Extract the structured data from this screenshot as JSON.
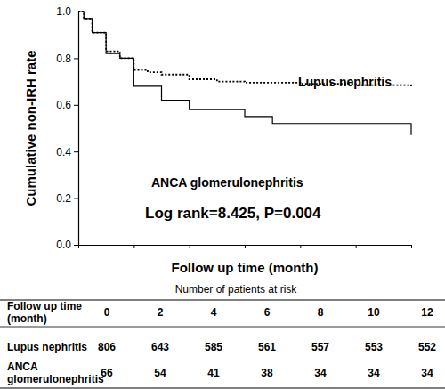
{
  "chart_data": {
    "type": "step",
    "annotation": "Log rank=8.425, P=0.004",
    "x_label": "Follow up time (month)",
    "y_label": "Cumulative non-IRH rate",
    "xlim": [
      0,
      12
    ],
    "xticks": [
      0,
      2,
      4,
      6,
      8,
      10,
      12
    ],
    "ylim": [
      0,
      1
    ],
    "yticks": [
      {
        "value": 0,
        "label": "0.0"
      },
      0.2,
      0.4,
      0.6,
      0.8,
      {
        "value": 1,
        "label": "1.0"
      }
    ],
    "tick_labels": "y",
    "grid": false,
    "series": [
      {
        "name": "Lupus nephritis",
        "color": "#000000",
        "line_style": "dotted",
        "x": [
          0,
          0.2,
          0.5,
          1,
          1.5,
          2,
          2.5,
          3,
          4,
          5,
          6,
          8,
          10,
          12
        ],
        "values": [
          1.0,
          0.97,
          0.91,
          0.83,
          0.8,
          0.75,
          0.74,
          0.73,
          0.71,
          0.7,
          0.695,
          0.69,
          0.685,
          0.675
        ]
      },
      {
        "name": "ANCA glomerulonephritis",
        "color": "#000000",
        "line_style": "solid",
        "x": [
          0,
          0.2,
          0.5,
          1,
          1.5,
          2,
          3,
          4,
          6,
          7,
          12
        ],
        "values": [
          1.0,
          0.97,
          0.91,
          0.82,
          0.8,
          0.68,
          0.62,
          0.58,
          0.55,
          0.52,
          0.47
        ]
      }
    ],
    "risk_table": {
      "title": "Number of patients at risk",
      "header": "Follow up time (month)",
      "times": [
        0,
        2,
        4,
        6,
        8,
        10,
        12
      ],
      "rows": [
        {
          "name": "Lupus nephritis",
          "values": [
            806,
            643,
            585,
            561,
            557,
            553,
            552
          ]
        },
        {
          "name": "ANCA glomerulonephritis",
          "values": [
            66,
            54,
            41,
            38,
            34,
            34,
            34
          ]
        }
      ]
    }
  }
}
